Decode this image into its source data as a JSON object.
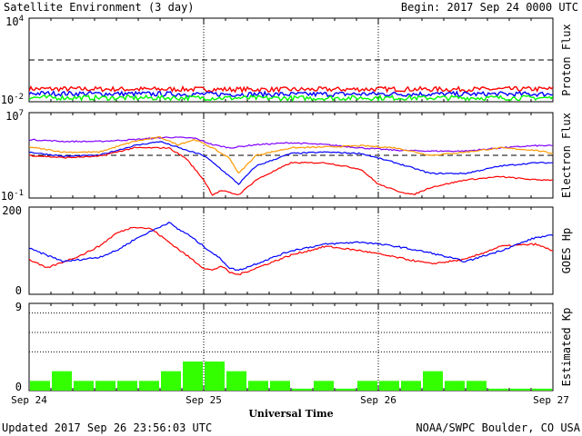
{
  "header": {
    "title": "Satellite Environment (3 day)",
    "begin": "Begin:  2017 Sep 24 0000 UTC"
  },
  "footer": {
    "updated": "Updated 2017 Sep 26 23:56:03 UTC",
    "source": "NOAA/SWPC Boulder, CO USA"
  },
  "xaxis": {
    "label": "Universal Time",
    "ticks": [
      "Sep 24",
      "Sep 25",
      "Sep 26",
      "Sep 27"
    ]
  },
  "colors": {
    "red": "#ff0000",
    "blue": "#0000ff",
    "green": "#00ff00",
    "purple": "#8000ff",
    "orange": "#ff9900",
    "kp_bar": "#33ff00"
  },
  "chart_data": [
    {
      "id": "proton",
      "type": "line",
      "ylabel": "Proton Flux",
      "yscale": "log",
      "ylim": [
        0.01,
        10000
      ],
      "ytick_labels": [
        {
          "base": "10",
          "exp": "4",
          "value": 10000
        },
        {
          "base": "10",
          "exp": "-2",
          "value": 0.01
        }
      ],
      "threshold": 10,
      "x_days": [
        0,
        3
      ],
      "series": [
        {
          "color": "red",
          "x": [
            0,
            0.5,
            1,
            1.5,
            2,
            2.5,
            3
          ],
          "y": [
            0.085,
            0.08,
            0.078,
            0.075,
            0.08,
            0.078,
            0.082
          ]
        },
        {
          "color": "blue",
          "x": [
            0,
            0.5,
            1,
            1.5,
            2,
            2.5,
            3
          ],
          "y": [
            0.04,
            0.037,
            0.035,
            0.034,
            0.036,
            0.035,
            0.036
          ]
        },
        {
          "color": "green",
          "x": [
            0,
            0.5,
            1,
            1.5,
            2,
            2.5,
            3
          ],
          "y": [
            0.02,
            0.019,
            0.019,
            0.018,
            0.019,
            0.019,
            0.019
          ]
        }
      ]
    },
    {
      "id": "electron",
      "type": "line",
      "ylabel": "Electron Flux",
      "yscale": "log",
      "ylim": [
        0.1,
        10000000
      ],
      "ytick_labels": [
        {
          "base": "10",
          "exp": "7",
          "value": 10000000
        },
        {
          "base": "10",
          "exp": "-1",
          "value": 0.1
        }
      ],
      "threshold": 1000,
      "x_days": [
        0,
        3
      ],
      "series": [
        {
          "color": "purple",
          "x": [
            0,
            0.2,
            0.4,
            0.6,
            0.8,
            0.95,
            1.05,
            1.15,
            1.3,
            1.5,
            1.7,
            1.9,
            2.1,
            2.3,
            2.5,
            2.7,
            2.9,
            3.0
          ],
          "y": [
            30000,
            20000,
            20000,
            30000,
            50000,
            40000,
            10000,
            5000,
            10000,
            15000,
            10000,
            5000,
            3000,
            2500,
            2500,
            5000,
            8000,
            8000
          ]
        },
        {
          "color": "orange",
          "x": [
            0,
            0.2,
            0.4,
            0.6,
            0.75,
            0.85,
            0.95,
            1.05,
            1.15,
            1.2,
            1.3,
            1.5,
            1.7,
            1.9,
            2.1,
            2.3,
            2.5,
            2.7,
            2.9,
            3.0
          ],
          "y": [
            6000,
            2000,
            2000,
            20000,
            50000,
            10000,
            30000,
            5000,
            500,
            20,
            1000,
            5000,
            6000,
            8000,
            5000,
            1000,
            2000,
            5000,
            3000,
            1500
          ]
        },
        {
          "color": "blue",
          "x": [
            0,
            0.2,
            0.4,
            0.6,
            0.75,
            0.9,
            1.0,
            1.1,
            1.2,
            1.3,
            1.5,
            1.7,
            1.9,
            2.1,
            2.3,
            2.5,
            2.7,
            2.9,
            3.0
          ],
          "y": [
            2000,
            800,
            1000,
            8000,
            20000,
            3000,
            1000,
            50,
            2,
            100,
            1500,
            2000,
            1500,
            200,
            20,
            20,
            100,
            200,
            200
          ]
        },
        {
          "color": "red",
          "x": [
            0,
            0.2,
            0.4,
            0.6,
            0.8,
            0.9,
            1.0,
            1.05,
            1.1,
            1.2,
            1.3,
            1.5,
            1.7,
            1.9,
            2.0,
            2.1,
            2.2,
            2.3,
            2.5,
            2.7,
            2.9,
            3.0
          ],
          "y": [
            1000,
            600,
            800,
            5000,
            5000,
            500,
            5,
            0.2,
            0.5,
            0.2,
            5,
            200,
            200,
            50,
            2,
            0.5,
            0.2,
            1,
            5,
            10,
            5,
            5
          ]
        }
      ]
    },
    {
      "id": "goes_hp",
      "type": "line",
      "ylabel": "GOES Hp",
      "yscale": "linear",
      "ylim": [
        0,
        200
      ],
      "ytick_labels": [
        {
          "text": "200",
          "value": 200
        },
        {
          "text": "0",
          "value": 0
        }
      ],
      "x_days": [
        0,
        3
      ],
      "series": [
        {
          "color": "red",
          "x": [
            0,
            0.1,
            0.2,
            0.3,
            0.4,
            0.5,
            0.6,
            0.7,
            0.8,
            0.9,
            1.0,
            1.05,
            1.1,
            1.15,
            1.2,
            1.3,
            1.5,
            1.7,
            1.9,
            2.1,
            2.3,
            2.5,
            2.7,
            2.9,
            3.0
          ],
          "y": [
            80,
            60,
            75,
            90,
            110,
            140,
            155,
            150,
            120,
            90,
            60,
            55,
            65,
            50,
            45,
            60,
            90,
            110,
            100,
            85,
            70,
            80,
            110,
            115,
            100
          ]
        },
        {
          "color": "blue",
          "x": [
            0,
            0.1,
            0.2,
            0.3,
            0.4,
            0.5,
            0.6,
            0.7,
            0.8,
            0.85,
            0.9,
            1.0,
            1.1,
            1.15,
            1.2,
            1.3,
            1.5,
            1.7,
            1.9,
            2.1,
            2.3,
            2.5,
            2.7,
            2.9,
            3.0
          ],
          "y": [
            105,
            90,
            75,
            80,
            85,
            100,
            125,
            145,
            165,
            150,
            140,
            110,
            80,
            60,
            55,
            70,
            100,
            115,
            120,
            110,
            95,
            75,
            100,
            130,
            135
          ]
        }
      ]
    },
    {
      "id": "kp",
      "type": "bar",
      "ylabel": "Estimated Kp",
      "ylim": [
        0,
        9
      ],
      "ytick_labels": [
        {
          "text": "9",
          "value": 9
        },
        {
          "text": "0",
          "value": 0
        }
      ],
      "gridlines": [
        4,
        6,
        8,
        9
      ],
      "bar_hours": 3,
      "values": [
        1,
        2,
        1,
        1,
        1,
        1,
        2,
        3,
        3,
        2,
        1,
        1,
        0.2,
        1,
        0.2,
        1,
        1,
        1,
        2,
        1,
        1,
        0.2,
        0.2,
        0.2
      ]
    }
  ]
}
